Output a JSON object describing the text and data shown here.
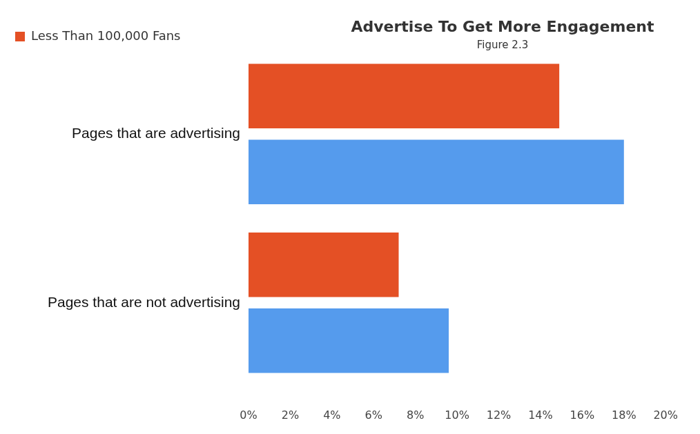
{
  "chart_data": {
    "type": "bar",
    "orientation": "horizontal",
    "title": "Advertise To Get More Engagement",
    "subtitle": "Figure 2.3",
    "categories": [
      "Pages that are advertising",
      "Pages that are not advertising"
    ],
    "series": [
      {
        "name": "Less Than 100,000 Fans",
        "color": "#e45025",
        "values": [
          14.9,
          7.2
        ]
      },
      {
        "color": "#559bed",
        "values": [
          18,
          9.6
        ]
      }
    ],
    "xlim": [
      0,
      20
    ],
    "xticks": [
      {
        "value": 0,
        "label": "0%"
      },
      {
        "value": 2,
        "label": "2%"
      },
      {
        "value": 4,
        "label": "4%"
      },
      {
        "value": 6,
        "label": "6%"
      },
      {
        "value": 8,
        "label": "8%"
      },
      {
        "value": 10,
        "label": "10%"
      },
      {
        "value": 12,
        "label": "12%"
      },
      {
        "value": 14,
        "label": "14%"
      },
      {
        "value": 16,
        "label": "16%"
      },
      {
        "value": 18,
        "label": "18%"
      },
      {
        "value": 20,
        "label": "20%"
      }
    ],
    "grid": false,
    "legend": "top left"
  }
}
